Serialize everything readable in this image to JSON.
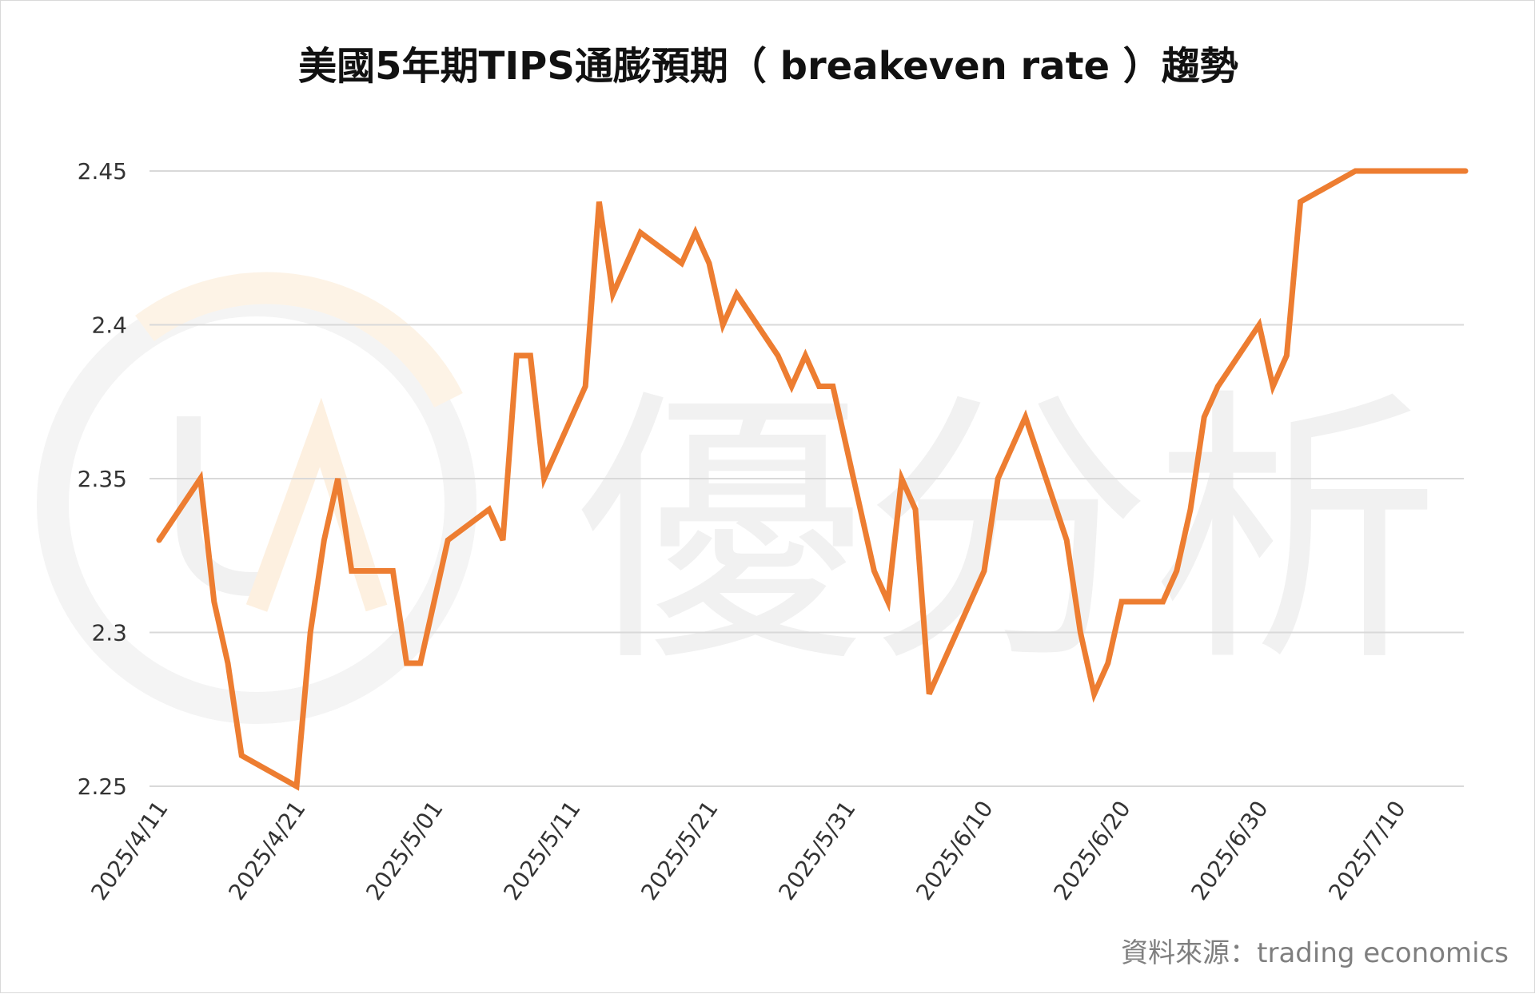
{
  "chart_data": {
    "type": "line",
    "title": "美國5年期TIPS通膨預期（ breakeven rate ）趨勢",
    "xlabel": "",
    "ylabel": "",
    "ylim": [
      2.25,
      2.45
    ],
    "yticks": [
      "2.25",
      "2.3",
      "2.35",
      "2.4",
      "2.45"
    ],
    "xticks": [
      "2025/4/11",
      "2025/4/21",
      "2025/5/01",
      "2025/5/11",
      "2025/5/21",
      "2025/5/31",
      "2025/6/10",
      "2025/6/20",
      "2025/6/30",
      "2025/7/10"
    ],
    "grid": "horizontal",
    "legend": "none",
    "color": "#ED7D31",
    "series": [
      {
        "x": [
          "2025/4/11",
          "2025/4/14",
          "2025/4/15",
          "2025/4/16",
          "2025/4/17",
          "2025/4/21",
          "2025/4/22",
          "2025/4/23",
          "2025/4/24",
          "2025/4/25",
          "2025/4/28",
          "2025/4/29",
          "2025/4/30",
          "2025/5/01",
          "2025/5/02",
          "2025/5/05",
          "2025/5/06",
          "2025/5/07",
          "2025/5/08",
          "2025/5/09",
          "2025/5/12",
          "2025/5/13",
          "2025/5/14",
          "2025/5/15",
          "2025/5/16",
          "2025/5/19",
          "2025/5/20",
          "2025/5/21",
          "2025/5/22",
          "2025/5/23",
          "2025/5/26",
          "2025/5/27",
          "2025/5/28",
          "2025/5/29",
          "2025/5/30",
          "2025/6/02",
          "2025/6/03",
          "2025/6/04",
          "2025/6/05",
          "2025/6/06",
          "2025/6/09",
          "2025/6/10",
          "2025/6/11",
          "2025/6/12",
          "2025/6/13",
          "2025/6/16",
          "2025/6/17",
          "2025/6/18",
          "2025/6/19",
          "2025/6/20",
          "2025/6/23",
          "2025/6/24",
          "2025/6/25",
          "2025/6/26",
          "2025/6/27",
          "2025/6/30",
          "2025/7/01",
          "2025/7/02",
          "2025/7/03",
          "2025/7/07",
          "2025/7/08",
          "2025/7/09",
          "2025/7/10",
          "2025/7/11",
          "2025/7/14",
          "2025/7/15"
        ],
        "values": [
          2.33,
          2.35,
          2.31,
          2.29,
          2.26,
          2.25,
          2.3,
          2.33,
          2.35,
          2.32,
          2.32,
          2.29,
          2.29,
          2.31,
          2.33,
          2.34,
          2.33,
          2.39,
          2.39,
          2.35,
          2.38,
          2.44,
          2.41,
          2.42,
          2.43,
          2.42,
          2.43,
          2.42,
          2.4,
          2.41,
          2.39,
          2.38,
          2.39,
          2.38,
          2.38,
          2.32,
          2.31,
          2.35,
          2.34,
          2.28,
          2.31,
          2.32,
          2.35,
          2.36,
          2.37,
          2.33,
          2.3,
          2.28,
          2.29,
          2.31,
          2.31,
          2.32,
          2.34,
          2.37,
          2.38,
          2.4,
          2.38,
          2.39,
          2.44,
          2.45,
          2.45,
          2.45,
          2.45,
          2.45,
          2.45,
          2.45
        ]
      }
    ]
  },
  "watermark": {
    "text": "優分析",
    "logo_letters": "UA"
  },
  "source_note": "資料來源：trading economics"
}
